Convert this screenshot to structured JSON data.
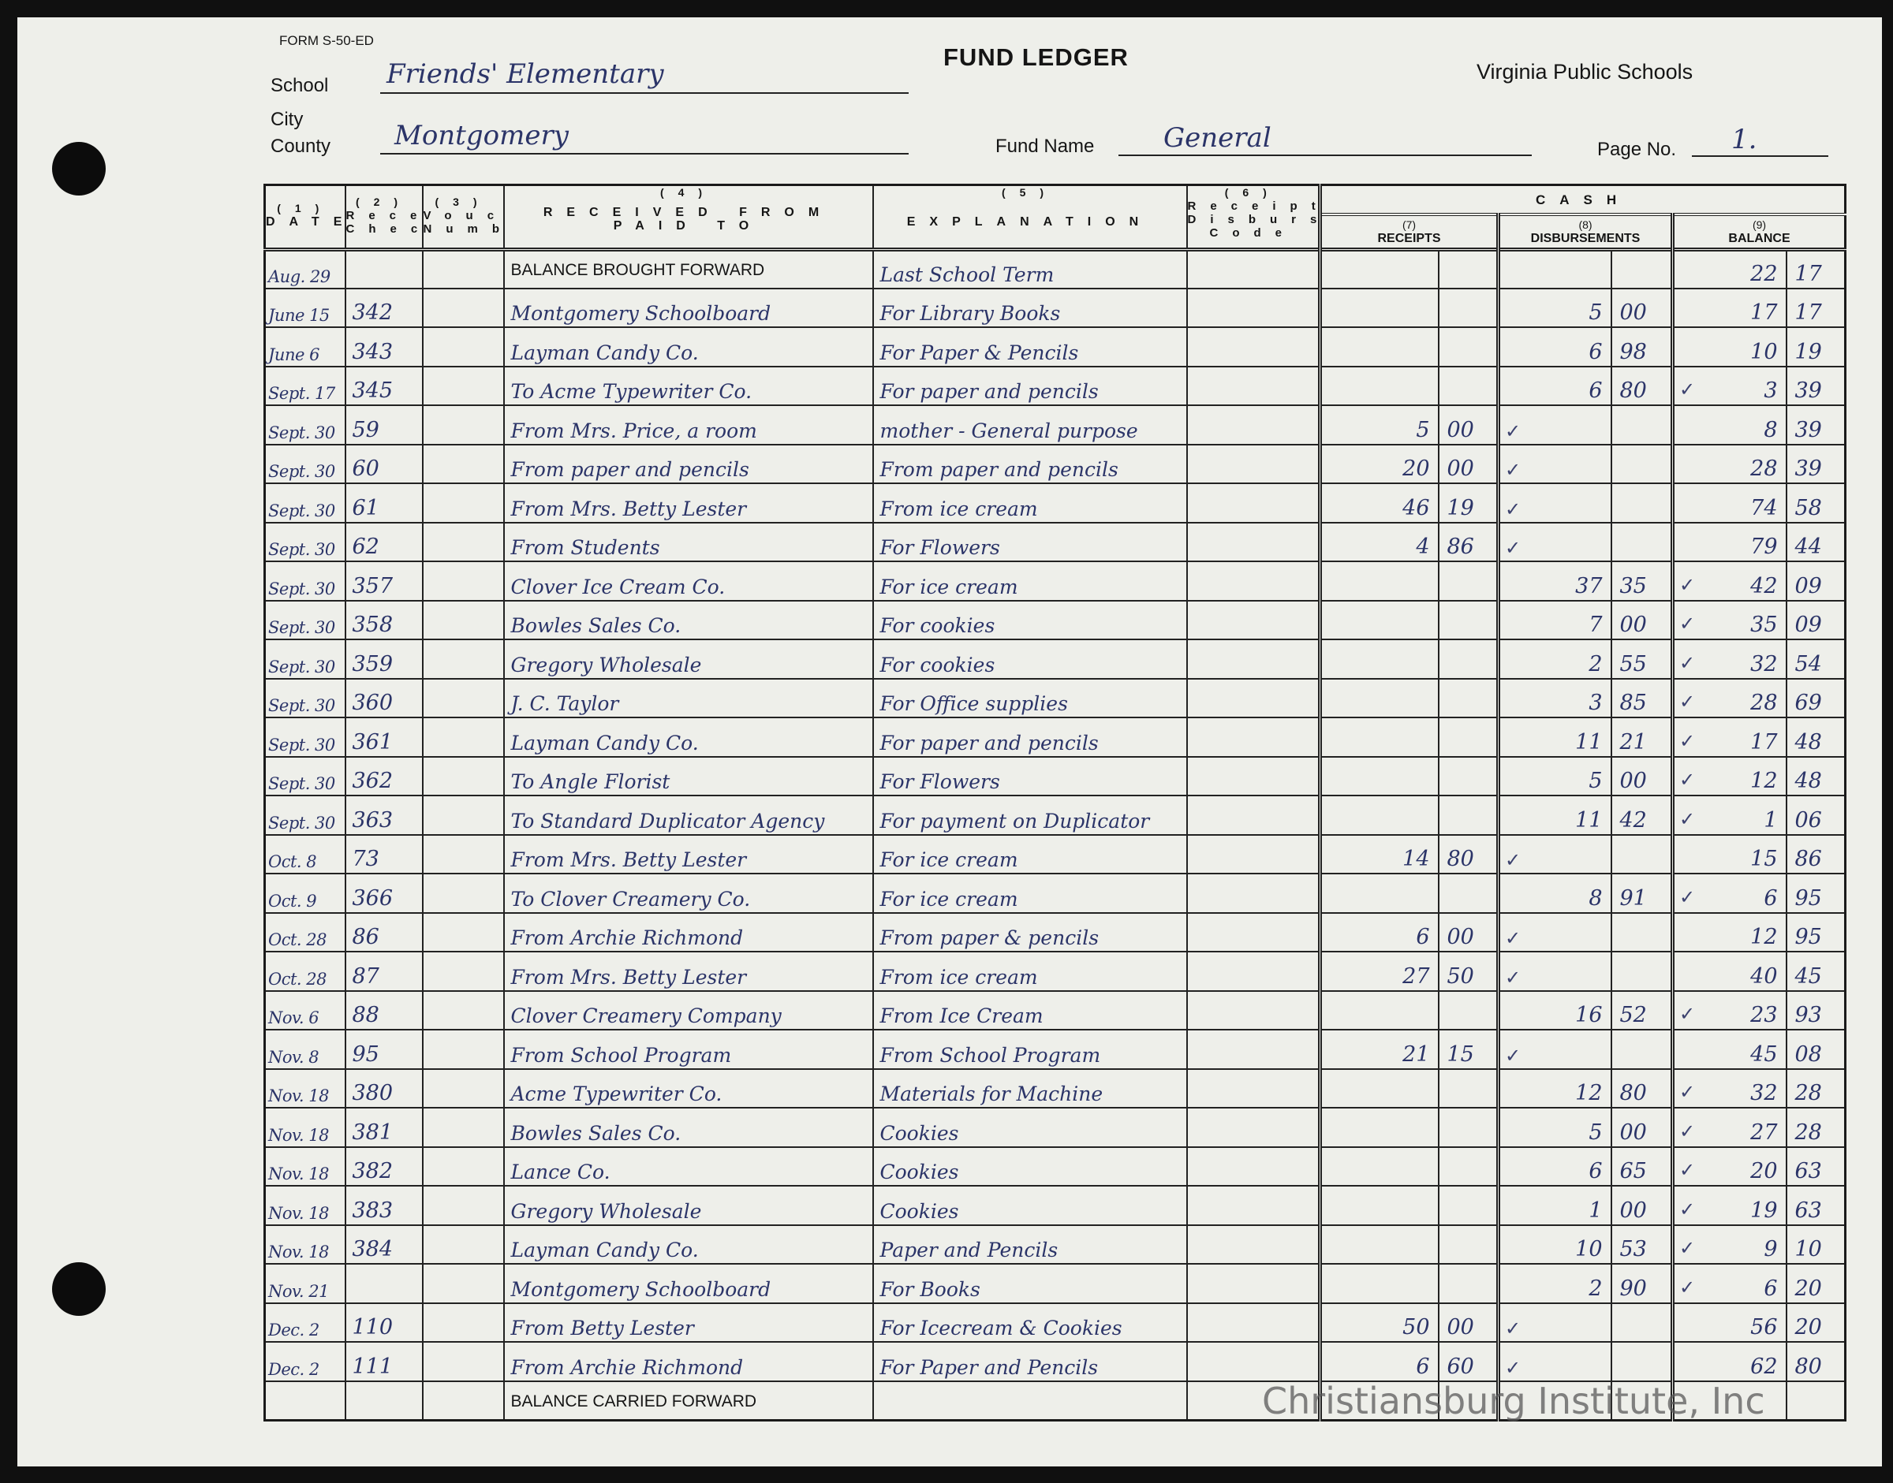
{
  "form": {
    "form_number": "FORM S-50-ED",
    "title": "FUND LEDGER",
    "issuer": "Virginia Public Schools",
    "school_label": "School",
    "school_value": "Friends' Elementary",
    "city_label": "City",
    "county_label": "County",
    "county_value": "Montgomery",
    "fund_name_label": "Fund Name",
    "fund_name_value": "General",
    "page_no_label": "Page No.",
    "page_no_value": "1."
  },
  "columns": {
    "date": {
      "num": "(1)",
      "label": "DATE"
    },
    "receipt_check": {
      "num": "(2)",
      "label1": "Receipt or",
      "label2": "Check No."
    },
    "voucher": {
      "num": "(3)",
      "label1": "Voucher",
      "label2": "Number"
    },
    "party": {
      "num": "(4)",
      "label1": "RECEIVED FROM",
      "label2": "PAID TO"
    },
    "explanation": {
      "num": "(5)",
      "label": "EXPLANATION"
    },
    "code": {
      "num": "(6)",
      "label1": "Receipt",
      "label2": "Disbursement",
      "label3": "Code"
    },
    "cash": "CASH",
    "receipts": {
      "num": "(7)",
      "label": "RECEIPTS"
    },
    "disbursements": {
      "num": "(8)",
      "label": "DISBURSEMENTS"
    },
    "balance": {
      "num": "(9)",
      "label": "BALANCE"
    }
  },
  "rows": [
    {
      "date": "Aug. 29",
      "check": "",
      "voucher": "",
      "party": "BALANCE BROUGHT FORWARD",
      "party_printed": true,
      "explanation": "Last School Term",
      "rec_d": "",
      "rec_c": "",
      "disb_d": "",
      "disb_c": "",
      "bal_d": "22",
      "bal_c": "17",
      "ticked": false
    },
    {
      "date": "June 15",
      "check": "342",
      "voucher": "",
      "party": "Montgomery Schoolboard",
      "explanation": "For Library Books",
      "rec_d": "",
      "rec_c": "",
      "disb_d": "5",
      "disb_c": "00",
      "bal_d": "17",
      "bal_c": "17",
      "ticked": false
    },
    {
      "date": "June 6",
      "check": "343",
      "voucher": "",
      "party": "Layman Candy Co.",
      "explanation": "For Paper & Pencils",
      "rec_d": "",
      "rec_c": "",
      "disb_d": "6",
      "disb_c": "98",
      "bal_d": "10",
      "bal_c": "19",
      "ticked": false
    },
    {
      "date": "Sept. 17",
      "check": "345",
      "voucher": "",
      "party": "To Acme Typewriter Co.",
      "explanation": "For paper and pencils",
      "rec_d": "",
      "rec_c": "",
      "disb_d": "6",
      "disb_c": "80",
      "bal_d": "3",
      "bal_c": "39",
      "ticked": true
    },
    {
      "date": "Sept. 30",
      "check": "59",
      "voucher": "",
      "party": "From Mrs. Price, a room",
      "explanation": "mother - General purpose",
      "rec_d": "5",
      "rec_c": "00",
      "disb_d": "",
      "disb_c": "",
      "bal_d": "8",
      "bal_c": "39",
      "ticked": true
    },
    {
      "date": "Sept. 30",
      "check": "60",
      "voucher": "",
      "party": "From paper and pencils",
      "explanation": "From paper and pencils",
      "rec_d": "20",
      "rec_c": "00",
      "disb_d": "",
      "disb_c": "",
      "bal_d": "28",
      "bal_c": "39",
      "ticked": true
    },
    {
      "date": "Sept. 30",
      "check": "61",
      "voucher": "",
      "party": "From Mrs. Betty Lester",
      "explanation": "From ice cream",
      "rec_d": "46",
      "rec_c": "19",
      "disb_d": "",
      "disb_c": "",
      "bal_d": "74",
      "bal_c": "58",
      "ticked": true
    },
    {
      "date": "Sept. 30",
      "check": "62",
      "voucher": "",
      "party": "From Students",
      "explanation": "For Flowers",
      "rec_d": "4",
      "rec_c": "86",
      "disb_d": "",
      "disb_c": "",
      "bal_d": "79",
      "bal_c": "44",
      "ticked": true
    },
    {
      "date": "Sept. 30",
      "check": "357",
      "voucher": "",
      "party": "Clover Ice Cream Co.",
      "explanation": "For ice cream",
      "rec_d": "",
      "rec_c": "",
      "disb_d": "37",
      "disb_c": "35",
      "bal_d": "42",
      "bal_c": "09",
      "ticked": true
    },
    {
      "date": "Sept. 30",
      "check": "358",
      "voucher": "",
      "party": "Bowles Sales Co.",
      "explanation": "For cookies",
      "rec_d": "",
      "rec_c": "",
      "disb_d": "7",
      "disb_c": "00",
      "bal_d": "35",
      "bal_c": "09",
      "ticked": true
    },
    {
      "date": "Sept. 30",
      "check": "359",
      "voucher": "",
      "party": "Gregory Wholesale",
      "explanation": "For cookies",
      "rec_d": "",
      "rec_c": "",
      "disb_d": "2",
      "disb_c": "55",
      "bal_d": "32",
      "bal_c": "54",
      "ticked": true
    },
    {
      "date": "Sept. 30",
      "check": "360",
      "voucher": "",
      "party": "J. C. Taylor",
      "explanation": "For Office supplies",
      "rec_d": "",
      "rec_c": "",
      "disb_d": "3",
      "disb_c": "85",
      "bal_d": "28",
      "bal_c": "69",
      "ticked": true
    },
    {
      "date": "Sept. 30",
      "check": "361",
      "voucher": "",
      "party": "Layman Candy Co.",
      "explanation": "For paper and pencils",
      "rec_d": "",
      "rec_c": "",
      "disb_d": "11",
      "disb_c": "21",
      "bal_d": "17",
      "bal_c": "48",
      "ticked": true
    },
    {
      "date": "Sept. 30",
      "check": "362",
      "voucher": "",
      "party": "To Angle Florist",
      "explanation": "For Flowers",
      "rec_d": "",
      "rec_c": "",
      "disb_d": "5",
      "disb_c": "00",
      "bal_d": "12",
      "bal_c": "48",
      "ticked": true
    },
    {
      "date": "Sept. 30",
      "check": "363",
      "voucher": "",
      "party": "To Standard Duplicator Agency",
      "explanation": "For payment on Duplicator",
      "rec_d": "",
      "rec_c": "",
      "disb_d": "11",
      "disb_c": "42",
      "bal_d": "1",
      "bal_c": "06",
      "ticked": true
    },
    {
      "date": "Oct. 8",
      "check": "73",
      "voucher": "",
      "party": "From Mrs. Betty Lester",
      "explanation": "For ice cream",
      "rec_d": "14",
      "rec_c": "80",
      "disb_d": "",
      "disb_c": "",
      "bal_d": "15",
      "bal_c": "86",
      "ticked": true
    },
    {
      "date": "Oct. 9",
      "check": "366",
      "voucher": "",
      "party": "To Clover Creamery Co.",
      "explanation": "For ice cream",
      "rec_d": "",
      "rec_c": "",
      "disb_d": "8",
      "disb_c": "91",
      "bal_d": "6",
      "bal_c": "95",
      "ticked": true
    },
    {
      "date": "Oct. 28",
      "check": "86",
      "voucher": "",
      "party": "From Archie Richmond",
      "explanation": "From paper & pencils",
      "rec_d": "6",
      "rec_c": "00",
      "disb_d": "",
      "disb_c": "",
      "bal_d": "12",
      "bal_c": "95",
      "ticked": true
    },
    {
      "date": "Oct. 28",
      "check": "87",
      "voucher": "",
      "party": "From Mrs. Betty Lester",
      "explanation": "From ice cream",
      "rec_d": "27",
      "rec_c": "50",
      "disb_d": "",
      "disb_c": "",
      "bal_d": "40",
      "bal_c": "45",
      "ticked": true
    },
    {
      "date": "Nov. 6",
      "check": "88",
      "voucher": "",
      "party": "Clover Creamery Company",
      "explanation": "From Ice Cream",
      "rec_d": "",
      "rec_c": "",
      "disb_d": "16",
      "disb_c": "52",
      "bal_d": "23",
      "bal_c": "93",
      "ticked": true
    },
    {
      "date": "Nov. 8",
      "check": "95",
      "voucher": "",
      "party": "From School Program",
      "explanation": "From School Program",
      "rec_d": "21",
      "rec_c": "15",
      "disb_d": "",
      "disb_c": "",
      "bal_d": "45",
      "bal_c": "08",
      "ticked": true
    },
    {
      "date": "Nov. 18",
      "check": "380",
      "voucher": "",
      "party": "Acme Typewriter Co.",
      "explanation": "Materials for Machine",
      "rec_d": "",
      "rec_c": "",
      "disb_d": "12",
      "disb_c": "80",
      "bal_d": "32",
      "bal_c": "28",
      "ticked": true
    },
    {
      "date": "Nov. 18",
      "check": "381",
      "voucher": "",
      "party": "Bowles Sales Co.",
      "explanation": "Cookies",
      "rec_d": "",
      "rec_c": "",
      "disb_d": "5",
      "disb_c": "00",
      "bal_d": "27",
      "bal_c": "28",
      "ticked": true
    },
    {
      "date": "Nov. 18",
      "check": "382",
      "voucher": "",
      "party": "Lance Co.",
      "explanation": "Cookies",
      "rec_d": "",
      "rec_c": "",
      "disb_d": "6",
      "disb_c": "65",
      "bal_d": "20",
      "bal_c": "63",
      "ticked": true
    },
    {
      "date": "Nov. 18",
      "check": "383",
      "voucher": "",
      "party": "Gregory Wholesale",
      "explanation": "Cookies",
      "rec_d": "",
      "rec_c": "",
      "disb_d": "1",
      "disb_c": "00",
      "bal_d": "19",
      "bal_c": "63",
      "ticked": true
    },
    {
      "date": "Nov. 18",
      "check": "384",
      "voucher": "",
      "party": "Layman Candy Co.",
      "explanation": "Paper and Pencils",
      "rec_d": "",
      "rec_c": "",
      "disb_d": "10",
      "disb_c": "53",
      "bal_d": "9",
      "bal_c": "10",
      "ticked": true
    },
    {
      "date": "Nov. 21",
      "check": "",
      "voucher": "",
      "party": "Montgomery Schoolboard",
      "explanation": "For Books",
      "rec_d": "",
      "rec_c": "",
      "disb_d": "2",
      "disb_c": "90",
      "bal_d": "6",
      "bal_c": "20",
      "ticked": true
    },
    {
      "date": "Dec. 2",
      "check": "110",
      "voucher": "",
      "party": "From Betty Lester",
      "explanation": "For Icecream & Cookies",
      "rec_d": "50",
      "rec_c": "00",
      "disb_d": "",
      "disb_c": "",
      "bal_d": "56",
      "bal_c": "20",
      "ticked": true
    },
    {
      "date": "Dec. 2",
      "check": "111",
      "voucher": "",
      "party": "From Archie Richmond",
      "explanation": "For Paper and Pencils",
      "rec_d": "6",
      "rec_c": "60",
      "disb_d": "",
      "disb_c": "",
      "bal_d": "62",
      "bal_c": "80",
      "ticked": true
    },
    {
      "date": "",
      "check": "",
      "voucher": "",
      "party": "BALANCE CARRIED FORWARD",
      "party_printed": true,
      "explanation": "",
      "rec_d": "",
      "rec_c": "",
      "disb_d": "",
      "disb_c": "",
      "bal_d": "",
      "bal_c": "",
      "ticked": false
    }
  ],
  "tick_mark": "✓",
  "watermark": "Christiansburg Institute, Inc",
  "colors": {
    "paper": "#eeefea",
    "ink": "#2b3468",
    "print": "#151515"
  }
}
